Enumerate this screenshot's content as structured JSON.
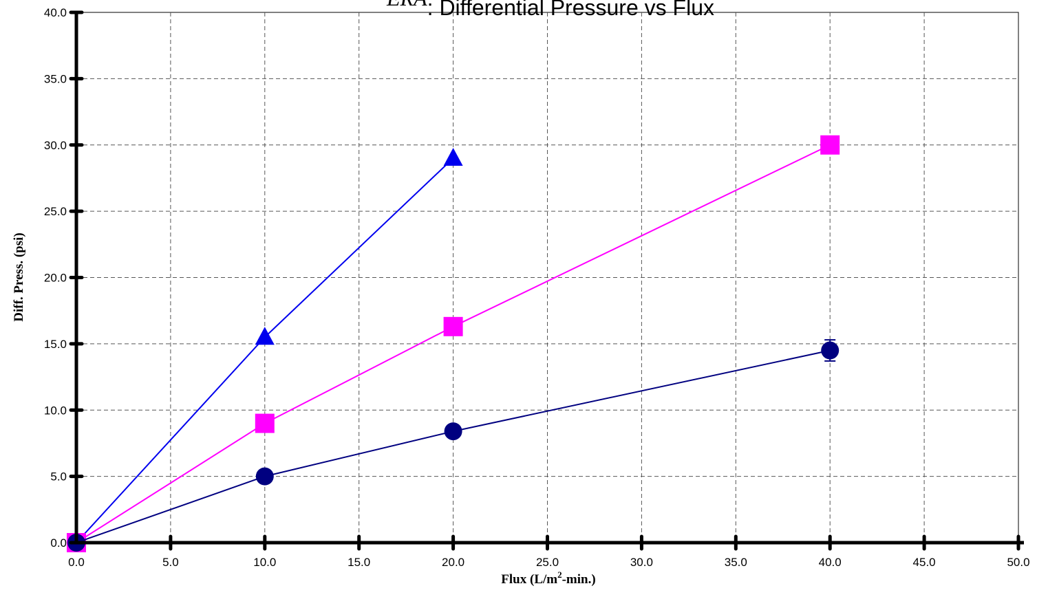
{
  "chart_data": {
    "type": "line",
    "title": "ERA",
    "title_superscript": "",
    "title_rest": ": Differential Pressure vs Flux",
    "xlabel": "Flux (L/m",
    "xlabel_sup": "2",
    "xlabel_rest": "-min.)",
    "ylabel": "Diff. Press. (psi)",
    "xlim": [
      0,
      50
    ],
    "ylim": [
      0,
      40
    ],
    "xticks": [
      "0.0",
      "5.0",
      "10.0",
      "15.0",
      "20.0",
      "25.0",
      "30.0",
      "35.0",
      "40.0",
      "45.0",
      "50.0"
    ],
    "yticks": [
      "0.0",
      "5.0",
      "10.0",
      "15.0",
      "20.0",
      "25.0",
      "30.0",
      "35.0",
      "40.0"
    ],
    "grid": true,
    "legend": "none",
    "series": [
      {
        "color": "#0000EE",
        "marker": "triangle",
        "x": [
          0,
          10,
          20
        ],
        "y": [
          0,
          15.5,
          29
        ]
      },
      {
        "color": "#FF00FF",
        "marker": "square",
        "x": [
          0,
          10,
          20,
          40
        ],
        "y": [
          0,
          9,
          16.3,
          30
        ]
      },
      {
        "color": "#000080",
        "marker": "circle",
        "x": [
          0,
          10,
          20,
          40
        ],
        "y": [
          0,
          5,
          8.4,
          14.5
        ],
        "error": [
          0,
          0,
          0,
          0.8
        ]
      }
    ]
  }
}
